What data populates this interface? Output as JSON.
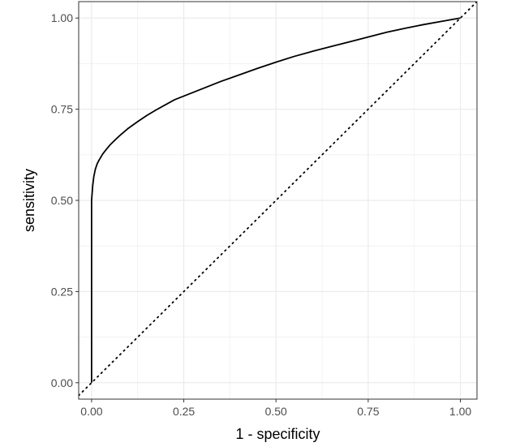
{
  "chart_data": {
    "type": "line",
    "title": "",
    "xlabel": "1 - specificity",
    "ylabel": "sensitivity",
    "xlim": [
      -0.035,
      1.045
    ],
    "ylim": [
      -0.045,
      1.045
    ],
    "x_ticks": [
      0.0,
      0.25,
      0.5,
      0.75,
      1.0
    ],
    "y_ticks": [
      0.0,
      0.25,
      0.5,
      0.75,
      1.0
    ],
    "x_tick_labels": [
      "0.00",
      "0.25",
      "0.50",
      "0.75",
      "1.00"
    ],
    "y_tick_labels": [
      "0.00",
      "0.25",
      "0.50",
      "0.75",
      "1.00"
    ],
    "grid": true,
    "legend": "none",
    "colors": {
      "curve": "#000000",
      "reference": "#000000",
      "grid": "#ebebeb",
      "panel_border": "#333333"
    },
    "series": [
      {
        "style": "solid",
        "x": [
          0.0,
          0.0,
          0.0,
          0.003,
          0.006,
          0.01,
          0.015,
          0.02,
          0.03,
          0.04,
          0.05,
          0.065,
          0.08,
          0.1,
          0.125,
          0.15,
          0.175,
          0.2,
          0.225,
          0.25,
          0.3,
          0.35,
          0.4,
          0.45,
          0.5,
          0.55,
          0.6,
          0.65,
          0.7,
          0.75,
          0.8,
          0.85,
          0.9,
          0.95,
          1.0
        ],
        "y": [
          0.0,
          0.3,
          0.5,
          0.54,
          0.565,
          0.585,
          0.6,
          0.61,
          0.627,
          0.64,
          0.652,
          0.667,
          0.681,
          0.698,
          0.716,
          0.733,
          0.748,
          0.762,
          0.776,
          0.786,
          0.806,
          0.826,
          0.844,
          0.862,
          0.879,
          0.895,
          0.909,
          0.922,
          0.935,
          0.948,
          0.961,
          0.972,
          0.982,
          0.991,
          1.0
        ]
      },
      {
        "style": "dotted",
        "x": [
          -0.035,
          1.045
        ],
        "y": [
          -0.035,
          1.045
        ]
      }
    ]
  }
}
